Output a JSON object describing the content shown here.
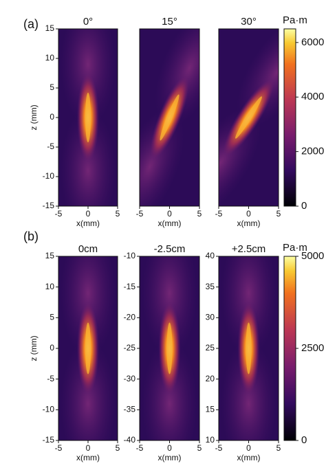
{
  "panel_labels": [
    "(a)",
    "(b)"
  ],
  "chart_data": [
    {
      "type": "heatmap",
      "title": "0°",
      "xlabel": "x(mm)",
      "ylabel": "z (mm)",
      "xlim": [
        -5,
        5
      ],
      "xticks": [
        -5,
        0,
        5
      ],
      "ylim": [
        -15,
        15
      ],
      "yticks": [
        -15,
        -10,
        -5,
        0,
        5,
        10,
        15
      ]
    },
    {
      "type": "heatmap",
      "title": "15°",
      "xlabel": "x(mm)",
      "xlim": [
        -5,
        5
      ],
      "xticks": [
        -5,
        0,
        5
      ],
      "ylim": [
        -15,
        15
      ]
    },
    {
      "type": "heatmap",
      "title": "30°",
      "xlabel": "x(mm)",
      "xlim": [
        -5,
        5
      ],
      "xticks": [
        -5,
        0,
        5
      ],
      "ylim": [
        -15,
        15
      ],
      "colorbar": {
        "label": "Pa·m",
        "lim": [
          0,
          6500
        ],
        "ticks": [
          0,
          2000,
          4000,
          6000
        ]
      }
    },
    {
      "type": "heatmap",
      "title": "0cm",
      "xlabel": "x(mm)",
      "ylabel": "z (mm)",
      "xlim": [
        -5,
        5
      ],
      "xticks": [
        -5,
        0,
        5
      ],
      "ylim": [
        -15,
        15
      ],
      "yticks": [
        -15,
        -10,
        -5,
        0,
        5,
        10,
        15
      ]
    },
    {
      "type": "heatmap",
      "title": "-2.5cm",
      "xlabel": "x(mm)",
      "xlim": [
        -5,
        5
      ],
      "xticks": [
        -5,
        0,
        5
      ],
      "ylim": [
        -40,
        -10
      ],
      "yticks": [
        -40,
        -35,
        -30,
        -25,
        -20,
        -15,
        -10
      ]
    },
    {
      "type": "heatmap",
      "title": "+2.5cm",
      "xlabel": "x(mm)",
      "xlim": [
        -5,
        5
      ],
      "xticks": [
        -5,
        0,
        5
      ],
      "ylim": [
        10,
        40
      ],
      "yticks": [
        10,
        15,
        20,
        25,
        30,
        35,
        40
      ],
      "colorbar": {
        "label": "Pa·m",
        "lim": [
          0,
          5000
        ],
        "ticks": [
          0,
          2500,
          5000
        ]
      }
    }
  ]
}
